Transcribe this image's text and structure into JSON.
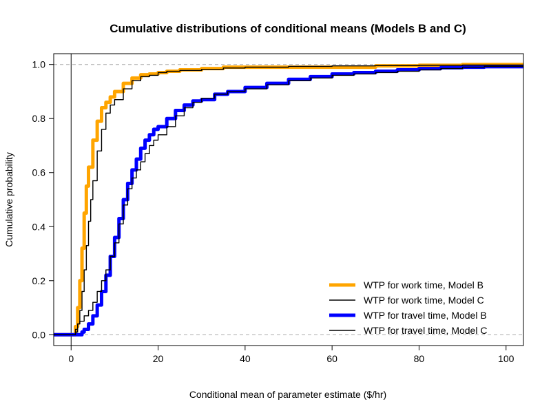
{
  "chart_data": {
    "type": "line",
    "title": "Cumulative distributions of conditional means (Models B and C)",
    "xlabel": "Conditional mean of parameter estimate ($/hr)",
    "ylabel": "Cumulative probability",
    "xlim": [
      -4,
      104
    ],
    "ylim": [
      -0.04,
      1.04
    ],
    "x_ticks": [
      "0",
      "20",
      "40",
      "60",
      "80",
      "100"
    ],
    "y_ticks": [
      "0.0",
      "0.2",
      "0.4",
      "0.6",
      "0.8",
      "1.0"
    ],
    "reference_lines": {
      "horizontal": [
        0,
        1
      ],
      "vertical": [
        0
      ]
    },
    "legend_position": "bottom-right",
    "series": [
      {
        "name": "WTP for work time, Model B",
        "color": "#FFA500",
        "style": "thick",
        "x": [
          -4,
          0.5,
          1,
          1.5,
          2,
          2.5,
          3,
          3.5,
          4,
          5,
          6,
          7,
          8,
          9,
          10,
          12,
          14,
          16,
          18,
          20,
          22,
          25,
          30,
          35,
          40,
          50,
          60,
          70,
          80,
          90,
          104
        ],
        "y": [
          0,
          0,
          0.03,
          0.1,
          0.2,
          0.32,
          0.45,
          0.55,
          0.62,
          0.72,
          0.79,
          0.84,
          0.86,
          0.88,
          0.9,
          0.93,
          0.95,
          0.962,
          0.965,
          0.97,
          0.975,
          0.98,
          0.985,
          0.99,
          0.99,
          0.99,
          0.99,
          0.995,
          0.997,
          1.0,
          1.0
        ]
      },
      {
        "name": "WTP for work time, Model C",
        "color": "#000000",
        "style": "thin",
        "x": [
          -4,
          0.5,
          1,
          1.5,
          2,
          2.5,
          3,
          3.5,
          4,
          4.5,
          5,
          6,
          7,
          8,
          9,
          10,
          12,
          14,
          16,
          18,
          20,
          22,
          25,
          30,
          35,
          40,
          50,
          60,
          70,
          80,
          90,
          104
        ],
        "y": [
          0,
          0,
          0.01,
          0.04,
          0.09,
          0.16,
          0.24,
          0.33,
          0.42,
          0.5,
          0.57,
          0.68,
          0.76,
          0.82,
          0.85,
          0.87,
          0.91,
          0.94,
          0.955,
          0.96,
          0.97,
          0.975,
          0.978,
          0.982,
          0.987,
          0.99,
          0.993,
          0.995,
          0.996,
          0.997,
          0.998,
          1.0
        ]
      },
      {
        "name": "WTP for travel time, Model B",
        "color": "#0000FF",
        "style": "thick",
        "x": [
          -4,
          2,
          2.5,
          3,
          4,
          5,
          6,
          7,
          8,
          9,
          10,
          11,
          12,
          13,
          14,
          15,
          16,
          17,
          18,
          19,
          20,
          22,
          24,
          26,
          28,
          30,
          33,
          36,
          40,
          45,
          50,
          55,
          60,
          65,
          70,
          75,
          80,
          85,
          90,
          95,
          104
        ],
        "y": [
          0,
          0,
          0.01,
          0.02,
          0.04,
          0.07,
          0.11,
          0.16,
          0.22,
          0.29,
          0.36,
          0.43,
          0.5,
          0.56,
          0.61,
          0.65,
          0.69,
          0.72,
          0.74,
          0.76,
          0.77,
          0.8,
          0.83,
          0.85,
          0.865,
          0.87,
          0.89,
          0.9,
          0.915,
          0.93,
          0.945,
          0.955,
          0.965,
          0.97,
          0.975,
          0.98,
          0.985,
          0.988,
          0.99,
          0.992,
          0.993
        ]
      },
      {
        "name": "WTP for travel time, Model C",
        "color": "#000000",
        "style": "thin",
        "x": [
          -4,
          0.5,
          1,
          1.5,
          2,
          3,
          4,
          5,
          6,
          7,
          8,
          9,
          10,
          11,
          12,
          13,
          14,
          15,
          16,
          17,
          18,
          19,
          20,
          22,
          24,
          26,
          28,
          30,
          33,
          36,
          40,
          45,
          50,
          55,
          60,
          65,
          70,
          75,
          80,
          85,
          90,
          95,
          104
        ],
        "y": [
          0,
          0,
          0.02,
          0.04,
          0.05,
          0.07,
          0.09,
          0.12,
          0.16,
          0.2,
          0.24,
          0.29,
          0.34,
          0.41,
          0.48,
          0.54,
          0.58,
          0.61,
          0.64,
          0.67,
          0.7,
          0.72,
          0.74,
          0.77,
          0.81,
          0.84,
          0.86,
          0.875,
          0.89,
          0.9,
          0.91,
          0.925,
          0.94,
          0.95,
          0.96,
          0.965,
          0.97,
          0.975,
          0.98,
          0.985,
          0.99,
          0.993,
          0.995
        ]
      }
    ]
  }
}
